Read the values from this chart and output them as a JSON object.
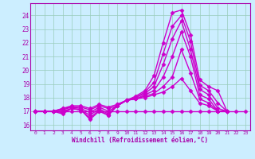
{
  "bg_color": "#cceeff",
  "line_color": "#cc00cc",
  "marker": "D",
  "markersize": 2.5,
  "linewidth": 1.0,
  "xlabel": "Windchill (Refroidissement éolien,°C)",
  "xlabel_color": "#aa00aa",
  "tick_color": "#aa00aa",
  "grid_color": "#99ccbb",
  "xlim": [
    -0.5,
    23.5
  ],
  "ylim": [
    15.6,
    24.9
  ],
  "yticks": [
    16,
    17,
    18,
    19,
    20,
    21,
    22,
    23,
    24
  ],
  "xticks": [
    0,
    1,
    2,
    3,
    4,
    5,
    6,
    7,
    8,
    9,
    10,
    11,
    12,
    13,
    14,
    15,
    16,
    17,
    18,
    19,
    20,
    21,
    22,
    23
  ],
  "series": [
    [
      17.0,
      17.0,
      17.0,
      16.8,
      17.2,
      17.1,
      16.4,
      17.0,
      16.7,
      17.5,
      17.8,
      18.1,
      18.5,
      19.6,
      22.0,
      24.2,
      24.4,
      22.6,
      19.3,
      18.8,
      18.5,
      17.0,
      null,
      null
    ],
    [
      17.0,
      17.0,
      17.0,
      16.9,
      17.2,
      17.1,
      16.5,
      17.1,
      16.7,
      17.4,
      17.8,
      18.0,
      18.4,
      19.1,
      21.2,
      23.2,
      24.0,
      22.1,
      18.9,
      18.5,
      17.6,
      17.0,
      null,
      null
    ],
    [
      17.0,
      17.0,
      17.0,
      17.0,
      17.2,
      17.1,
      16.7,
      17.2,
      16.8,
      17.4,
      17.8,
      18.0,
      18.3,
      18.8,
      20.4,
      22.3,
      23.6,
      21.5,
      18.6,
      18.2,
      17.2,
      17.0,
      null,
      null
    ],
    [
      17.0,
      17.0,
      17.0,
      17.1,
      17.3,
      17.2,
      16.9,
      17.3,
      17.0,
      17.4,
      17.8,
      17.9,
      18.2,
      18.5,
      19.5,
      21.0,
      22.8,
      21.0,
      18.2,
      17.9,
      17.0,
      17.0,
      null,
      null
    ],
    [
      17.0,
      17.0,
      17.0,
      17.2,
      17.3,
      17.3,
      17.1,
      17.4,
      17.2,
      17.4,
      17.8,
      17.9,
      18.1,
      18.3,
      18.8,
      19.5,
      21.5,
      19.8,
      17.9,
      17.6,
      17.0,
      17.0,
      null,
      null
    ],
    [
      17.0,
      17.0,
      17.0,
      17.2,
      17.4,
      17.4,
      17.2,
      17.5,
      17.3,
      17.5,
      17.8,
      17.9,
      18.0,
      18.2,
      18.4,
      18.8,
      19.4,
      18.5,
      17.6,
      17.4,
      17.0,
      17.0,
      null,
      null
    ],
    [
      17.0,
      17.0,
      17.0,
      17.0,
      17.0,
      17.0,
      17.0,
      17.0,
      17.0,
      17.0,
      17.0,
      17.0,
      17.0,
      17.0,
      17.0,
      17.0,
      17.0,
      17.0,
      17.0,
      17.0,
      17.0,
      17.0,
      17.0,
      17.0
    ]
  ]
}
